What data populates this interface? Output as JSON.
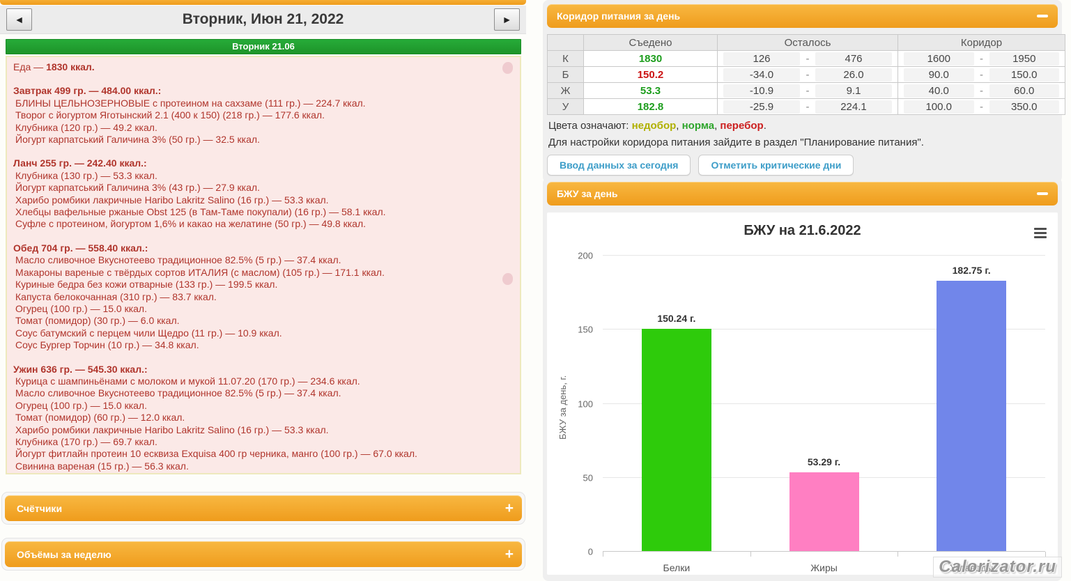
{
  "page": {
    "watermark": "Calorizator.ru"
  },
  "left_panel": {
    "nav": {
      "prev_icon": "◄",
      "next_icon": "►",
      "title": "Вторник, Июн 21, 2022"
    },
    "day_bar": "Вторник 21.06",
    "diary": {
      "summary_prefix": "Еда — ",
      "summary_value": "1830 ккал.",
      "meals": [
        {
          "title": "Завтрак 499 гр. — 484.00 ккал.:",
          "items": [
            "БЛИНЫ ЦЕЛЬНОЗЕРНОВЫЕ с протеином на сахзаме (111 гр.) — 224.7 ккал.",
            "Творог с йогуртом Яготынский 2.1 (400 к 150) (218 гр.) — 177.6 ккал.",
            "Клубника (120 гр.) — 49.2 ккал.",
            "Йогурт карпатський Галичина 3% (50 гр.) — 32.5 ккал."
          ]
        },
        {
          "title": "Ланч 255 гр. — 242.40 ккал.:",
          "items": [
            "Клубника (130 гр.) — 53.3 ккал.",
            "Йогурт карпатський Галичина 3% (43 гр.) — 27.9 ккал.",
            "Харибо ромбики лакричные Haribo Lakritz Salino (16 гр.) — 53.3 ккал.",
            "Хлебцы вафельные ржаные Obst 125 (в Там-Таме покупали) (16 гр.) — 58.1 ккал.",
            "Суфле с протеином, йогуртом 1,6% и какао на желатине (50 гр.) — 49.8 ккал."
          ]
        },
        {
          "title": "Обед 704 гр. — 558.40 ккал.:",
          "items": [
            "Масло сливочное Вкуснотеево традиционное 82.5% (5 гр.) — 37.4 ккал.",
            "Макароны вареные с твёрдых сортов ИТАЛИЯ (с маслом) (105 гр.) — 171.1 ккал.",
            "Куриные бедра без кожи отварные (133 гр.) — 199.5 ккал.",
            "Капуста белокочанная (310 гр.) — 83.7 ккал.",
            "Огурец (100 гр.) — 15.0 ккал.",
            "Томат (помидор) (30 гр.) — 6.0 ккал.",
            "Соус батумский с перцем чили Щедро (11 гр.) — 10.9 ккал.",
            "Соус Бургер Торчин (10 гр.) — 34.8 ккал."
          ]
        },
        {
          "title": "Ужин 636 гр. — 545.30 ккал.:",
          "items": [
            "Курица с шампиньёнами с молоком и мукой 11.07.20 (170 гр.) — 234.6 ккал.",
            "Масло сливочное Вкуснотеево традиционное 82.5% (5 гр.) — 37.4 ккал.",
            "Огурец (100 гр.) — 15.0 ккал.",
            "Томат (помидор) (60 гр.) — 12.0 ккал.",
            "Харибо ромбики лакричные Haribo Lakritz Salino (16 гр.) — 53.3 ккал.",
            "Клубника (170 гр.) — 69.7 ккал.",
            "Йогурт фитлайн протеин 10 есквиза Exquisa 400 гр черника, манго (100 гр.) — 67.0 ккал.",
            "Свинина вареная (15 гр.) — 56.3 ккал."
          ]
        }
      ]
    },
    "collapsed_sections": [
      {
        "label": "Счётчики",
        "toggle": "+"
      },
      {
        "label": "Объёмы за неделю",
        "toggle": "+"
      }
    ]
  },
  "right_panel": {
    "corridor": {
      "header": "Коридор питания за день",
      "table": {
        "headers": [
          "",
          "Съедено",
          "Осталось",
          "Коридор"
        ],
        "rows": [
          {
            "label": "К",
            "eaten": "1830",
            "eaten_color": "green",
            "rem_lo": "126",
            "rem_hi": "476",
            "cor_lo": "1600",
            "cor_hi": "1950"
          },
          {
            "label": "Б",
            "eaten": "150.2",
            "eaten_color": "red",
            "rem_lo": "-34.0",
            "rem_hi": "26.0",
            "cor_lo": "90.0",
            "cor_hi": "150.0"
          },
          {
            "label": "Ж",
            "eaten": "53.3",
            "eaten_color": "green",
            "rem_lo": "-10.9",
            "rem_hi": "9.1",
            "cor_lo": "40.0",
            "cor_hi": "60.0"
          },
          {
            "label": "У",
            "eaten": "182.8",
            "eaten_color": "green",
            "rem_lo": "-25.9",
            "rem_hi": "224.1",
            "cor_lo": "100.0",
            "cor_hi": "350.0"
          }
        ]
      },
      "legend": {
        "prefix": "Цвета означают: ",
        "items": [
          {
            "text": "недобор",
            "color": "#b0b000"
          },
          {
            "text": "норма",
            "color": "#2ea52c"
          },
          {
            "text": "перебор",
            "color": "#cc2020"
          }
        ],
        "suffix": "."
      },
      "note": "Для настройки коридора питания зайдите в раздел \"Планирование питания\".",
      "buttons": [
        "Ввод данных за сегодня",
        "Отметить критические дни"
      ]
    },
    "bju": {
      "header": "БЖУ за день"
    }
  },
  "chart_data": {
    "type": "bar",
    "title": "БЖУ на 21.6.2022",
    "categories": [
      "Белки",
      "Жиры",
      "Углеводы"
    ],
    "values": [
      150.24,
      53.29,
      182.75
    ],
    "value_labels": [
      "150.24 г.",
      "53.29 г.",
      "182.75 г."
    ],
    "colors": [
      "#2ecb0b",
      "#ff7fc2",
      "#7186ea"
    ],
    "xlabel": "",
    "ylabel": "БЖУ за день, г.",
    "ylim": [
      0,
      200
    ],
    "yticks": [
      0,
      50,
      100,
      150,
      200
    ],
    "grid": true,
    "legend_position": "none"
  }
}
